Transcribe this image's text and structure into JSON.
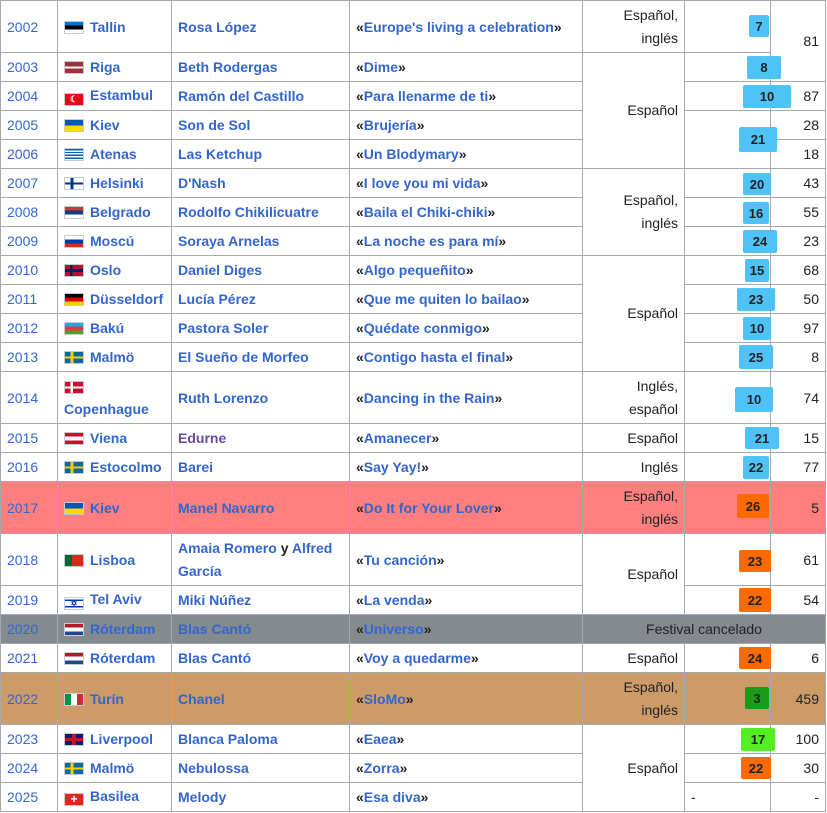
{
  "rows": [
    {
      "year": "2002",
      "city": "Tallin",
      "artist": "Rosa López",
      "song": "Europe's living a celebration",
      "lang": [
        "Español,",
        "inglés"
      ],
      "pos": "7",
      "pts": "81"
    },
    {
      "year": "2003",
      "city": "Riga",
      "artist": "Beth Rodergas",
      "song": "Dime",
      "pos": "8"
    },
    {
      "year": "2004",
      "city": "Estambul",
      "artist": "Ramón del Castillo",
      "song": "Para llenarme de ti",
      "lang": [
        "Español"
      ],
      "pos": "10",
      "pts": "87"
    },
    {
      "year": "2005",
      "city": "Kiev",
      "artist": "Son de Sol",
      "song": "Brujería",
      "pts": "28"
    },
    {
      "year": "2006",
      "city": "Atenas",
      "artist": "Las Ketchup",
      "song": "Un Blodymary",
      "pos": "21",
      "pts": "18"
    },
    {
      "year": "2007",
      "city": "Helsinki",
      "artist": "D'Nash",
      "song": "I love you mi vida",
      "lang": [
        "Español,",
        "inglés"
      ],
      "pos": "20",
      "pts": "43"
    },
    {
      "year": "2008",
      "city": "Belgrado",
      "artist": "Rodolfo Chikilicuatre",
      "song": "Baila el Chiki-chiki",
      "pos": "16",
      "pts": "55"
    },
    {
      "year": "2009",
      "city": "Moscú",
      "artist": "Soraya Arnelas",
      "song": "La noche es para mí",
      "pos": "24",
      "pts": "23"
    },
    {
      "year": "2010",
      "city": "Oslo",
      "artist": "Daniel Diges",
      "song": "Algo pequeñito",
      "lang": [
        "Español"
      ],
      "pos": "15",
      "pts": "68"
    },
    {
      "year": "2011",
      "city": "Düsseldorf",
      "artist": "Lucía Pérez",
      "song": "Que me quiten lo bailao",
      "pos": "23",
      "pts": "50"
    },
    {
      "year": "2012",
      "city": "Bakú",
      "artist": "Pastora Soler",
      "song": "Quédate conmigo",
      "pos": "10",
      "pts": "97"
    },
    {
      "year": "2013",
      "city": "Malmö",
      "artist": "El Sueño de Morfeo",
      "song": "Contigo hasta el final",
      "pos": "25",
      "pts": "8"
    },
    {
      "year": "2014",
      "city": "Copenhague",
      "artist": "Ruth Lorenzo",
      "song": "Dancing in the Rain",
      "lang": [
        "Inglés,",
        "español"
      ],
      "pos": "10",
      "pts": "74"
    },
    {
      "year": "2015",
      "city": "Viena",
      "artist": "Edurne",
      "song": "Amanecer",
      "lang": [
        "Español"
      ],
      "pos": "21",
      "pts": "15"
    },
    {
      "year": "2016",
      "city": "Estocolmo",
      "artist": "Barei",
      "song": "Say Yay!",
      "lang": [
        "Inglés"
      ],
      "pos": "22",
      "pts": "77"
    },
    {
      "year": "2017",
      "city": "Kiev",
      "artist": "Manel Navarro",
      "song": "Do It for Your Lover",
      "lang": [
        "Español,",
        "inglés"
      ],
      "pos": "26",
      "pts": "5"
    },
    {
      "year": "2018",
      "city": "Lisboa",
      "artist": "Amaia Romero",
      "artist_join": "y",
      "artist2": "Alfred García",
      "song": "Tu canción",
      "lang": [
        "Español"
      ],
      "pos": "23",
      "pts": "61"
    },
    {
      "year": "2019",
      "city": "Tel Aviv",
      "artist": "Miki Núñez",
      "song": "La venda",
      "pos": "22",
      "pts": "54"
    },
    {
      "year": "2020",
      "city": "Róterdam",
      "artist": "Blas Cantó",
      "song": "Universo",
      "note": "Festival cancelado"
    },
    {
      "year": "2021",
      "city": "Róterdam",
      "artist": "Blas Cantó",
      "song": "Voy a quedarme",
      "lang": [
        "Español"
      ],
      "pos": "24",
      "pts": "6"
    },
    {
      "year": "2022",
      "city": "Turín",
      "artist": "Chanel",
      "song": "SloMo",
      "lang": [
        "Español,",
        "inglés"
      ],
      "pos": "3",
      "pts": "459"
    },
    {
      "year": "2023",
      "city": "Liverpool",
      "artist": "Blanca Paloma",
      "song": "Eaea",
      "lang": [
        "Español"
      ],
      "pos": "17",
      "pts": "100"
    },
    {
      "year": "2024",
      "city": "Malmö",
      "artist": "Nebulossa",
      "song": "Zorra",
      "pos": "22",
      "pts": "30"
    },
    {
      "year": "2025",
      "city": "Basilea",
      "artist": "Melody",
      "song": "Esa diva",
      "pos": "-",
      "pts": "-"
    }
  ],
  "quote_open": "«",
  "quote_close": "»",
  "colors": {
    "blue_badge": "#4fc3f7",
    "orange_badge": "#ff6a00",
    "green_dark": "#1a9b1a",
    "green_light": "#55ee22",
    "row_red": "#ff7f7f",
    "row_gray": "#858a8f",
    "row_tan": "#cd9b67",
    "link": "#3366cc"
  },
  "icons": {
    "flag": "country-flag-icon"
  }
}
